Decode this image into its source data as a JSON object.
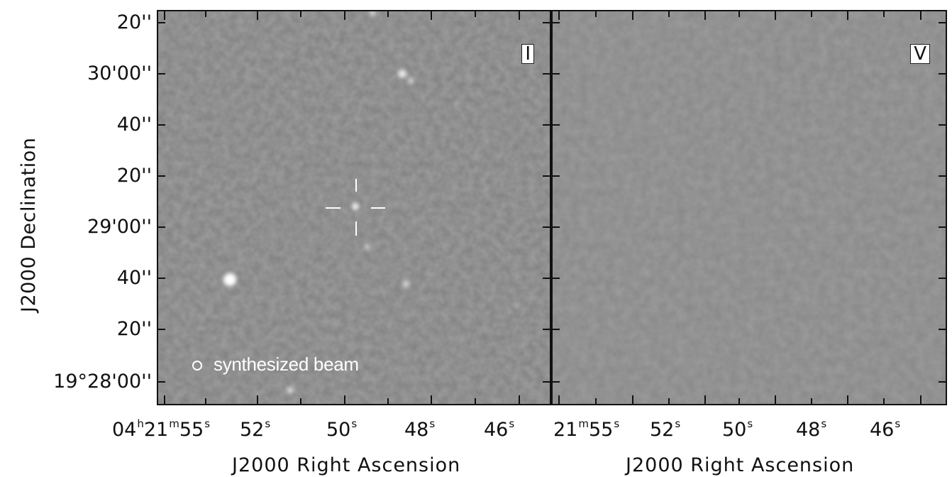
{
  "panels": {
    "left": {
      "stokes_label": "I",
      "beam_label": "synthesized beam"
    },
    "right": {
      "stokes_label": "V"
    }
  },
  "y_axis": {
    "title": "J2000 Declination",
    "ticks": [
      "20''",
      "30'00''",
      "40''",
      "20''",
      "29'00''",
      "40''",
      "20''",
      "19°28'00''"
    ]
  },
  "x_axis_left": {
    "title": "J2000 Right Ascension",
    "ticks": [
      {
        "parts": [
          "04",
          "h",
          "21",
          "m",
          "55",
          "s"
        ]
      },
      {
        "parts": [
          "52",
          "s"
        ]
      },
      {
        "parts": [
          "50",
          "s"
        ]
      },
      {
        "parts": [
          "48",
          "s"
        ]
      },
      {
        "parts": [
          "46",
          "s"
        ]
      }
    ]
  },
  "x_axis_right": {
    "title": "J2000 Right Ascension",
    "ticks": [
      {
        "parts": [
          "21",
          "m",
          "55",
          "s"
        ]
      },
      {
        "parts": [
          "52",
          "s"
        ]
      },
      {
        "parts": [
          "50",
          "s"
        ]
      },
      {
        "parts": [
          "48",
          "s"
        ]
      },
      {
        "parts": [
          "46",
          "s"
        ]
      }
    ]
  },
  "colors": {
    "background_gray": "#8a8a8a",
    "source_white": "#ffffff"
  }
}
